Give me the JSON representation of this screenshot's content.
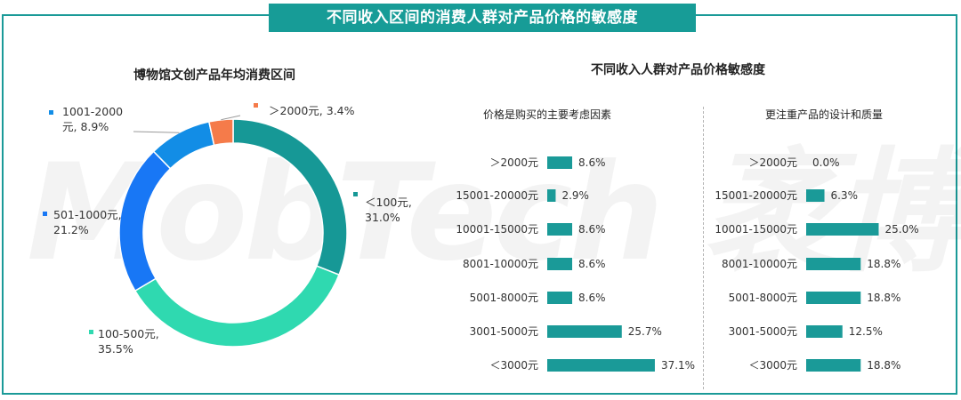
{
  "banner_title": "不同收入区间的消费人群对产品价格的敏感度",
  "watermark": "MobTech 袤博",
  "left_title": "博物馆文创产品年均消费区间",
  "right_title": "不同收入人群对产品价格敏感度",
  "colors": {
    "accent": "#179c97",
    "bar": "#1a9a98"
  },
  "chart_data": [
    {
      "type": "pie",
      "donut": true,
      "title": "博物馆文创产品年均消费区间",
      "slices": [
        {
          "label": "＜100元",
          "value": 31.0,
          "text": "＜100元,\n31.0%",
          "color": "#169896"
        },
        {
          "label": "100-500元",
          "value": 35.5,
          "text": "100-500元,\n35.5%",
          "color": "#2fd9b0"
        },
        {
          "label": "501-1000元",
          "value": 21.2,
          "text": "501-1000元,\n21.2%",
          "color": "#1877f5"
        },
        {
          "label": "1001-2000元",
          "value": 8.9,
          "text": "1001-2000\n元, 8.9%",
          "color": "#128de6"
        },
        {
          "label": "＞2000元",
          "value": 3.4,
          "text": "＞2000元, 3.4%",
          "color": "#f57b4a"
        }
      ]
    },
    {
      "type": "bar",
      "orientation": "horizontal",
      "title": "价格是购买的主要考虑因素",
      "categories": [
        "＞2000元",
        "15001-20000元",
        "10001-15000元",
        "8001-10000元",
        "5001-8000元",
        "3001-5000元",
        "＜3000元"
      ],
      "values": [
        8.6,
        2.9,
        8.6,
        8.6,
        8.6,
        25.7,
        37.1
      ],
      "labels": [
        "8.6%",
        "2.9%",
        "8.6%",
        "8.6%",
        "8.6%",
        "25.7%",
        "37.1%"
      ]
    },
    {
      "type": "bar",
      "orientation": "horizontal",
      "title": "更注重产品的设计和质量",
      "categories": [
        "＞2000元",
        "15001-20000元",
        "10001-15000元",
        "8001-10000元",
        "5001-8000元",
        "3001-5000元",
        "＜3000元"
      ],
      "values": [
        0.0,
        6.3,
        25.0,
        18.8,
        18.8,
        12.5,
        18.8
      ],
      "labels": [
        "0.0%",
        "6.3%",
        "25.0%",
        "18.8%",
        "18.8%",
        "12.5%",
        "18.8%"
      ]
    }
  ]
}
